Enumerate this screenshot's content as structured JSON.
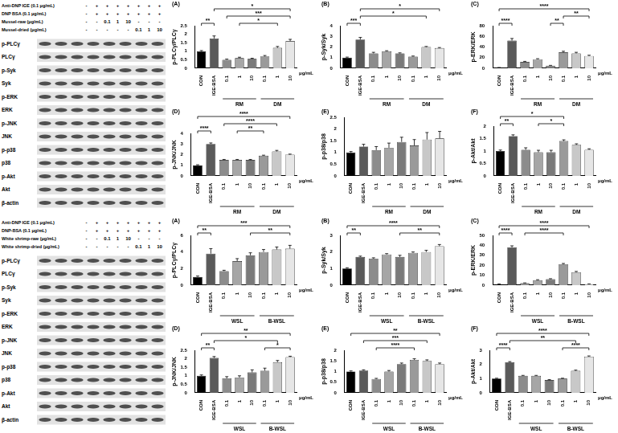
{
  "blots": [
    {
      "treatments": [
        {
          "label": "Anti-DNP IGE (0.1 μg/mL)",
          "values": [
            "-",
            "+",
            "+",
            "+",
            "+",
            "+",
            "+",
            "+"
          ]
        },
        {
          "label": "DNP BSA (0.1 μg/mL)",
          "values": [
            "-",
            "+",
            "+",
            "+",
            "+",
            "+",
            "+",
            "+"
          ]
        },
        {
          "label": "Mussel-raw (μg/mL)",
          "values": [
            "-",
            "-",
            "0.1",
            "1",
            "10",
            "-",
            "-",
            "-"
          ]
        },
        {
          "label": "Mussel-dried (μg/mL)",
          "values": [
            "-",
            "-",
            "-",
            "-",
            "-",
            "0.1",
            "1",
            "10"
          ]
        }
      ],
      "proteins": [
        "p-PLCγ",
        "PLCγ",
        "p-Syk",
        "Syk",
        "p-ERK",
        "ERK",
        "p-JNK",
        "JNK",
        "p-p38",
        "p38",
        "p-Akt",
        "Akt",
        "β-actin"
      ]
    },
    {
      "treatments": [
        {
          "label": "Anti-DNP IGE (0.1 μg/mL)",
          "values": [
            "-",
            "+",
            "+",
            "+",
            "+",
            "+",
            "+",
            "+"
          ]
        },
        {
          "label": "DNP-BSA (0.1 μg/mL)",
          "values": [
            "-",
            "+",
            "+",
            "+",
            "+",
            "+",
            "+",
            "+"
          ]
        },
        {
          "label": "White shrimp-raw (μg/mL)",
          "values": [
            "-",
            "-",
            "0.1",
            "1",
            "10",
            "-",
            "-",
            "-"
          ]
        },
        {
          "label": "White shrimp-dried (μg/mL)",
          "values": [
            "-",
            "-",
            "-",
            "-",
            "-",
            "0.1",
            "1",
            "10"
          ]
        }
      ],
      "proteins": [
        "p-PLCγ",
        "PLCγ",
        "p-Syk",
        "Syk",
        "p-ERK",
        "ERK",
        "p-JNK",
        "JNK",
        "p-p38",
        "p38",
        "p-Akt",
        "Akt",
        "β-actin"
      ]
    }
  ],
  "chart_data": [
    {
      "type": "bar",
      "panel": "(A)",
      "ylabel": "p-PLCγ/PLCγ",
      "categories": [
        "CON",
        "IGE-BSA",
        "0.1",
        "1",
        "10",
        "0.1",
        "1",
        "10"
      ],
      "values": [
        1.0,
        1.75,
        0.5,
        0.6,
        0.55,
        0.7,
        1.2,
        1.6
      ],
      "errors": [
        0.04,
        0.15,
        0.04,
        0.05,
        0.04,
        0.05,
        0.08,
        0.1
      ],
      "colors": [
        "#000000",
        "#5a5a5a",
        "#8c8c8c",
        "#a6a6a6",
        "#7a7a7a",
        "#9a9a9a",
        "#c8c8c8",
        "#e6e6e6"
      ],
      "ylim": [
        0,
        2.5
      ],
      "yticks": [
        0,
        0.5,
        1,
        1.5,
        2,
        2.5
      ],
      "grid": false,
      "groups": [
        {
          "label": "RM",
          "from": 2,
          "to": 4
        },
        {
          "label": "DM",
          "from": 5,
          "to": 7
        }
      ],
      "unit": "μg/mL",
      "significance": [
        {
          "from": 0,
          "to": 1,
          "label": "**"
        },
        {
          "from": 3,
          "to": 6,
          "label": "*"
        },
        {
          "from": 2,
          "to": 7,
          "label": "***"
        },
        {
          "from": 1,
          "to": 7,
          "label": "*"
        }
      ]
    },
    {
      "type": "bar",
      "panel": "(B)",
      "ylabel": "p-Syk/Syk",
      "categories": [
        "CON",
        "IGE-BSA",
        "0.1",
        "1",
        "10",
        "0.1",
        "1",
        "10"
      ],
      "values": [
        1.0,
        2.7,
        1.4,
        1.6,
        1.4,
        1.1,
        2.0,
        1.9
      ],
      "errors": [
        0.05,
        0.2,
        0.1,
        0.05,
        0.05,
        0.05,
        0.05,
        0.05
      ],
      "colors": [
        "#000000",
        "#5a5a5a",
        "#8c8c8c",
        "#a6a6a6",
        "#7a7a7a",
        "#9a9a9a",
        "#c8c8c8",
        "#e6e6e6"
      ],
      "ylim": [
        0,
        4
      ],
      "yticks": [
        0,
        1,
        2,
        3,
        4
      ],
      "grid": false,
      "groups": [
        {
          "label": "RM",
          "from": 2,
          "to": 4
        },
        {
          "label": "DM",
          "from": 5,
          "to": 7
        }
      ],
      "unit": "μg/mL",
      "significance": [
        {
          "from": 0,
          "to": 1,
          "label": "***"
        },
        {
          "from": 1,
          "to": 6,
          "label": "*"
        },
        {
          "from": 1,
          "to": 7,
          "label": "*"
        }
      ]
    },
    {
      "type": "bar",
      "panel": "(C)",
      "ylabel": "p-ERK/ERK",
      "categories": [
        "CON",
        "IGE-BSA",
        "0.1",
        "1",
        "10",
        "0.1",
        "1",
        "10"
      ],
      "values": [
        1,
        52,
        12,
        17,
        5,
        30,
        28,
        23
      ],
      "errors": [
        0.5,
        4,
        1,
        1,
        0.5,
        2,
        2,
        1.5
      ],
      "colors": [
        "#000000",
        "#5a5a5a",
        "#8c8c8c",
        "#a6a6a6",
        "#7a7a7a",
        "#9a9a9a",
        "#c8c8c8",
        "#e6e6e6"
      ],
      "ylim": [
        0,
        80
      ],
      "yticks": [
        0,
        20,
        40,
        60,
        80
      ],
      "grid": false,
      "groups": [
        {
          "label": "RM",
          "from": 2,
          "to": 4
        },
        {
          "label": "DM",
          "from": 5,
          "to": 7
        }
      ],
      "unit": "μg/mL",
      "significance": [
        {
          "from": 0,
          "to": 1,
          "label": "****"
        },
        {
          "from": 4,
          "to": 5,
          "label": "**"
        },
        {
          "from": 5,
          "to": 7,
          "label": "**"
        },
        {
          "from": 0,
          "to": 7,
          "label": "****"
        }
      ]
    },
    {
      "type": "bar",
      "panel": "(D)",
      "ylabel": "p-JNK/JNK",
      "categories": [
        "CON",
        "IGE-BSA",
        "0.1",
        "1",
        "10",
        "0.1",
        "1",
        "10"
      ],
      "values": [
        1.0,
        3.0,
        1.5,
        1.5,
        1.5,
        1.9,
        2.3,
        2.0
      ],
      "errors": [
        0.05,
        0.1,
        0.05,
        0.05,
        0.05,
        0.05,
        0.1,
        0.05
      ],
      "colors": [
        "#000000",
        "#5a5a5a",
        "#8c8c8c",
        "#a6a6a6",
        "#7a7a7a",
        "#9a9a9a",
        "#c8c8c8",
        "#e6e6e6"
      ],
      "ylim": [
        0,
        4
      ],
      "yticks": [
        0,
        1,
        2,
        3,
        4
      ],
      "grid": false,
      "groups": [
        {
          "label": "RM",
          "from": 2,
          "to": 4
        },
        {
          "label": "DM",
          "from": 5,
          "to": 7
        }
      ],
      "unit": "μg/mL",
      "significance": [
        {
          "from": 0,
          "to": 1,
          "label": "****"
        },
        {
          "from": 3,
          "to": 5,
          "label": "**"
        },
        {
          "from": 2,
          "to": 6,
          "label": "****"
        },
        {
          "from": 0,
          "to": 7,
          "label": "****"
        }
      ]
    },
    {
      "type": "bar",
      "panel": "(E)",
      "ylabel": "p-p38/p38",
      "categories": [
        "CON",
        "IGE-BSA",
        "0.1",
        "1",
        "10",
        "0.1",
        "1",
        "10"
      ],
      "values": [
        1.0,
        1.25,
        1.1,
        1.2,
        1.45,
        1.3,
        1.55,
        1.6
      ],
      "errors": [
        0.04,
        0.1,
        0.15,
        0.2,
        0.2,
        0.25,
        0.3,
        0.3
      ],
      "colors": [
        "#000000",
        "#5a5a5a",
        "#8c8c8c",
        "#a6a6a6",
        "#7a7a7a",
        "#9a9a9a",
        "#c8c8c8",
        "#e6e6e6"
      ],
      "ylim": [
        0,
        2.5
      ],
      "yticks": [
        0,
        0.5,
        1,
        1.5,
        2,
        2.5
      ],
      "grid": false,
      "groups": [
        {
          "label": "RM",
          "from": 2,
          "to": 4
        },
        {
          "label": "DM",
          "from": 5,
          "to": 7
        }
      ],
      "unit": "μg/mL",
      "significance": []
    },
    {
      "type": "bar",
      "panel": "(F)",
      "ylabel": "p-Akt/Akt",
      "categories": [
        "CON",
        "IGE-BSA",
        "0.1",
        "1",
        "10",
        "0.1",
        "1",
        "10"
      ],
      "values": [
        1.0,
        1.6,
        1.05,
        0.95,
        0.95,
        1.4,
        1.25,
        1.05
      ],
      "errors": [
        0.04,
        0.05,
        0.08,
        0.08,
        0.08,
        0.05,
        0.04,
        0.04
      ],
      "colors": [
        "#000000",
        "#5a5a5a",
        "#8c8c8c",
        "#a6a6a6",
        "#7a7a7a",
        "#9a9a9a",
        "#c8c8c8",
        "#e6e6e6"
      ],
      "ylim": [
        0,
        2
      ],
      "yticks": [
        0,
        0.5,
        1,
        1.5,
        2
      ],
      "grid": false,
      "groups": [
        {
          "label": "RM",
          "from": 2,
          "to": 4
        },
        {
          "label": "DM",
          "from": 5,
          "to": 7
        }
      ],
      "unit": "μg/mL",
      "significance": [
        {
          "from": 0,
          "to": 1,
          "label": "**"
        },
        {
          "from": 3,
          "to": 5,
          "label": "*"
        },
        {
          "from": 0,
          "to": 5,
          "label": "*"
        }
      ]
    },
    {
      "type": "bar",
      "panel": "(A)",
      "ylabel": "p-PLCγ/PLCγ",
      "categories": [
        "CON",
        "IGE-BSA",
        "0.1",
        "1",
        "10",
        "0.1",
        "1",
        "10"
      ],
      "values": [
        1.0,
        3.8,
        1.7,
        2.9,
        3.6,
        4.0,
        4.3,
        4.4
      ],
      "errors": [
        0.1,
        0.6,
        0.1,
        0.3,
        0.3,
        0.3,
        0.3,
        0.4
      ],
      "colors": [
        "#000000",
        "#5a5a5a",
        "#8c8c8c",
        "#a6a6a6",
        "#7a7a7a",
        "#9a9a9a",
        "#c8c8c8",
        "#e6e6e6"
      ],
      "ylim": [
        0,
        6
      ],
      "yticks": [
        0,
        2,
        4,
        6
      ],
      "grid": false,
      "groups": [
        {
          "label": "WSL",
          "from": 2,
          "to": 4
        },
        {
          "label": "B-WSL",
          "from": 5,
          "to": 7
        }
      ],
      "unit": "μg/mL",
      "significance": [
        {
          "from": 0,
          "to": 1,
          "label": "**"
        },
        {
          "from": 4,
          "to": 7,
          "label": "**"
        },
        {
          "from": 0,
          "to": 7,
          "label": "***"
        }
      ]
    },
    {
      "type": "bar",
      "panel": "(B)",
      "ylabel": "p-Syk/Syk",
      "categories": [
        "CON",
        "IGE-BSA",
        "0.1",
        "1",
        "10",
        "0.1",
        "1",
        "10"
      ],
      "values": [
        1.0,
        1.7,
        1.6,
        1.85,
        1.7,
        1.95,
        2.0,
        2.35
      ],
      "errors": [
        0.05,
        0.05,
        0.05,
        0.05,
        0.1,
        0.05,
        0.1,
        0.1
      ],
      "colors": [
        "#000000",
        "#5a5a5a",
        "#8c8c8c",
        "#a6a6a6",
        "#7a7a7a",
        "#9a9a9a",
        "#c8c8c8",
        "#e6e6e6"
      ],
      "ylim": [
        0,
        3
      ],
      "yticks": [
        0,
        1,
        2,
        3
      ],
      "grid": false,
      "groups": [
        {
          "label": "WSL",
          "from": 2,
          "to": 4
        },
        {
          "label": "B-WSL",
          "from": 5,
          "to": 7
        }
      ],
      "unit": "μg/mL",
      "significance": [
        {
          "from": 0,
          "to": 1,
          "label": "**"
        },
        {
          "from": 4,
          "to": 7,
          "label": "**"
        },
        {
          "from": 0,
          "to": 7,
          "label": "****"
        }
      ]
    },
    {
      "type": "bar",
      "panel": "(C)",
      "ylabel": "p-ERK/ERK",
      "categories": [
        "CON",
        "IGE-BSA",
        "0.1",
        "1",
        "10",
        "0.1",
        "1",
        "10"
      ],
      "values": [
        1,
        38,
        2,
        5,
        6,
        21,
        13,
        1
      ],
      "errors": [
        0.3,
        1.5,
        0.3,
        0.5,
        0.5,
        0.8,
        0.8,
        0.3
      ],
      "colors": [
        "#000000",
        "#5a5a5a",
        "#8c8c8c",
        "#a6a6a6",
        "#7a7a7a",
        "#9a9a9a",
        "#c8c8c8",
        "#e6e6e6"
      ],
      "ylim": [
        0,
        50
      ],
      "yticks": [
        0,
        10,
        20,
        30,
        40,
        50
      ],
      "grid": false,
      "groups": [
        {
          "label": "WSL",
          "from": 2,
          "to": 4
        },
        {
          "label": "B-WSL",
          "from": 5,
          "to": 7
        }
      ],
      "unit": "μg/mL",
      "significance": [
        {
          "from": 0,
          "to": 1,
          "label": "****"
        },
        {
          "from": 2,
          "to": 5,
          "label": "****"
        },
        {
          "from": 0,
          "to": 7,
          "label": "****"
        }
      ]
    },
    {
      "type": "bar",
      "panel": "(D)",
      "ylabel": "p-JNK/JNK",
      "categories": [
        "CON",
        "IGE-BSA",
        "0.1",
        "1",
        "10",
        "0.1",
        "1",
        "10"
      ],
      "values": [
        1.0,
        2.05,
        0.85,
        0.9,
        1.2,
        1.3,
        1.8,
        2.1
      ],
      "errors": [
        0.05,
        0.08,
        0.1,
        0.1,
        0.15,
        0.15,
        0.1,
        0.05
      ],
      "colors": [
        "#000000",
        "#5a5a5a",
        "#8c8c8c",
        "#a6a6a6",
        "#7a7a7a",
        "#9a9a9a",
        "#c8c8c8",
        "#e6e6e6"
      ],
      "ylim": [
        0,
        2.5
      ],
      "yticks": [
        0,
        0.5,
        1,
        1.5,
        2,
        2.5
      ],
      "grid": false,
      "groups": [
        {
          "label": "WSL",
          "from": 2,
          "to": 4
        },
        {
          "label": "B-WSL",
          "from": 5,
          "to": 7
        }
      ],
      "unit": "μg/mL",
      "significance": [
        {
          "from": 0,
          "to": 1,
          "label": "**"
        },
        {
          "from": 5,
          "to": 7,
          "label": "*"
        },
        {
          "from": 1,
          "to": 6,
          "label": "*"
        },
        {
          "from": 0,
          "to": 7,
          "label": "**"
        }
      ]
    },
    {
      "type": "bar",
      "panel": "(E)",
      "ylabel": "p-p38/p38",
      "categories": [
        "CON",
        "IGE-BSA",
        "0.1",
        "1",
        "10",
        "0.1",
        "1",
        "10"
      ],
      "values": [
        1.0,
        1.05,
        0.65,
        1.0,
        1.35,
        1.55,
        1.5,
        1.35
      ],
      "errors": [
        0.03,
        0.03,
        0.03,
        0.05,
        0.05,
        0.05,
        0.05,
        0.05
      ],
      "colors": [
        "#000000",
        "#5a5a5a",
        "#8c8c8c",
        "#a6a6a6",
        "#7a7a7a",
        "#9a9a9a",
        "#c8c8c8",
        "#e6e6e6"
      ],
      "ylim": [
        0,
        2
      ],
      "yticks": [
        0,
        0.5,
        1,
        1.5,
        2
      ],
      "grid": false,
      "groups": [
        {
          "label": "WSL",
          "from": 2,
          "to": 4
        },
        {
          "label": "B-WSL",
          "from": 5,
          "to": 7
        }
      ],
      "unit": "μg/mL",
      "significance": [
        {
          "from": 2,
          "to": 5,
          "label": "****"
        },
        {
          "from": 1,
          "to": 6,
          "label": "***"
        },
        {
          "from": 0,
          "to": 7,
          "label": "**"
        }
      ]
    },
    {
      "type": "bar",
      "panel": "(F)",
      "ylabel": "p-Akt/Akt",
      "categories": [
        "CON",
        "IGE-BSA",
        "0.1",
        "1",
        "10",
        "0.1",
        "1",
        "10"
      ],
      "values": [
        1.0,
        2.15,
        1.2,
        1.2,
        0.9,
        1.0,
        1.55,
        2.55
      ],
      "errors": [
        0.03,
        0.05,
        0.03,
        0.03,
        0.03,
        0.03,
        0.05,
        0.05
      ],
      "colors": [
        "#000000",
        "#5a5a5a",
        "#8c8c8c",
        "#a6a6a6",
        "#7a7a7a",
        "#9a9a9a",
        "#c8c8c8",
        "#e6e6e6"
      ],
      "ylim": [
        0,
        3
      ],
      "yticks": [
        0,
        1,
        2,
        3
      ],
      "grid": false,
      "groups": [
        {
          "label": "WSL",
          "from": 2,
          "to": 4
        },
        {
          "label": "B-WSL",
          "from": 5,
          "to": 7
        }
      ],
      "unit": "μg/mL",
      "significance": [
        {
          "from": 0,
          "to": 1,
          "label": "****"
        },
        {
          "from": 5,
          "to": 7,
          "label": "****"
        },
        {
          "from": 1,
          "to": 6,
          "label": "**"
        },
        {
          "from": 0,
          "to": 7,
          "label": "****"
        }
      ]
    }
  ]
}
